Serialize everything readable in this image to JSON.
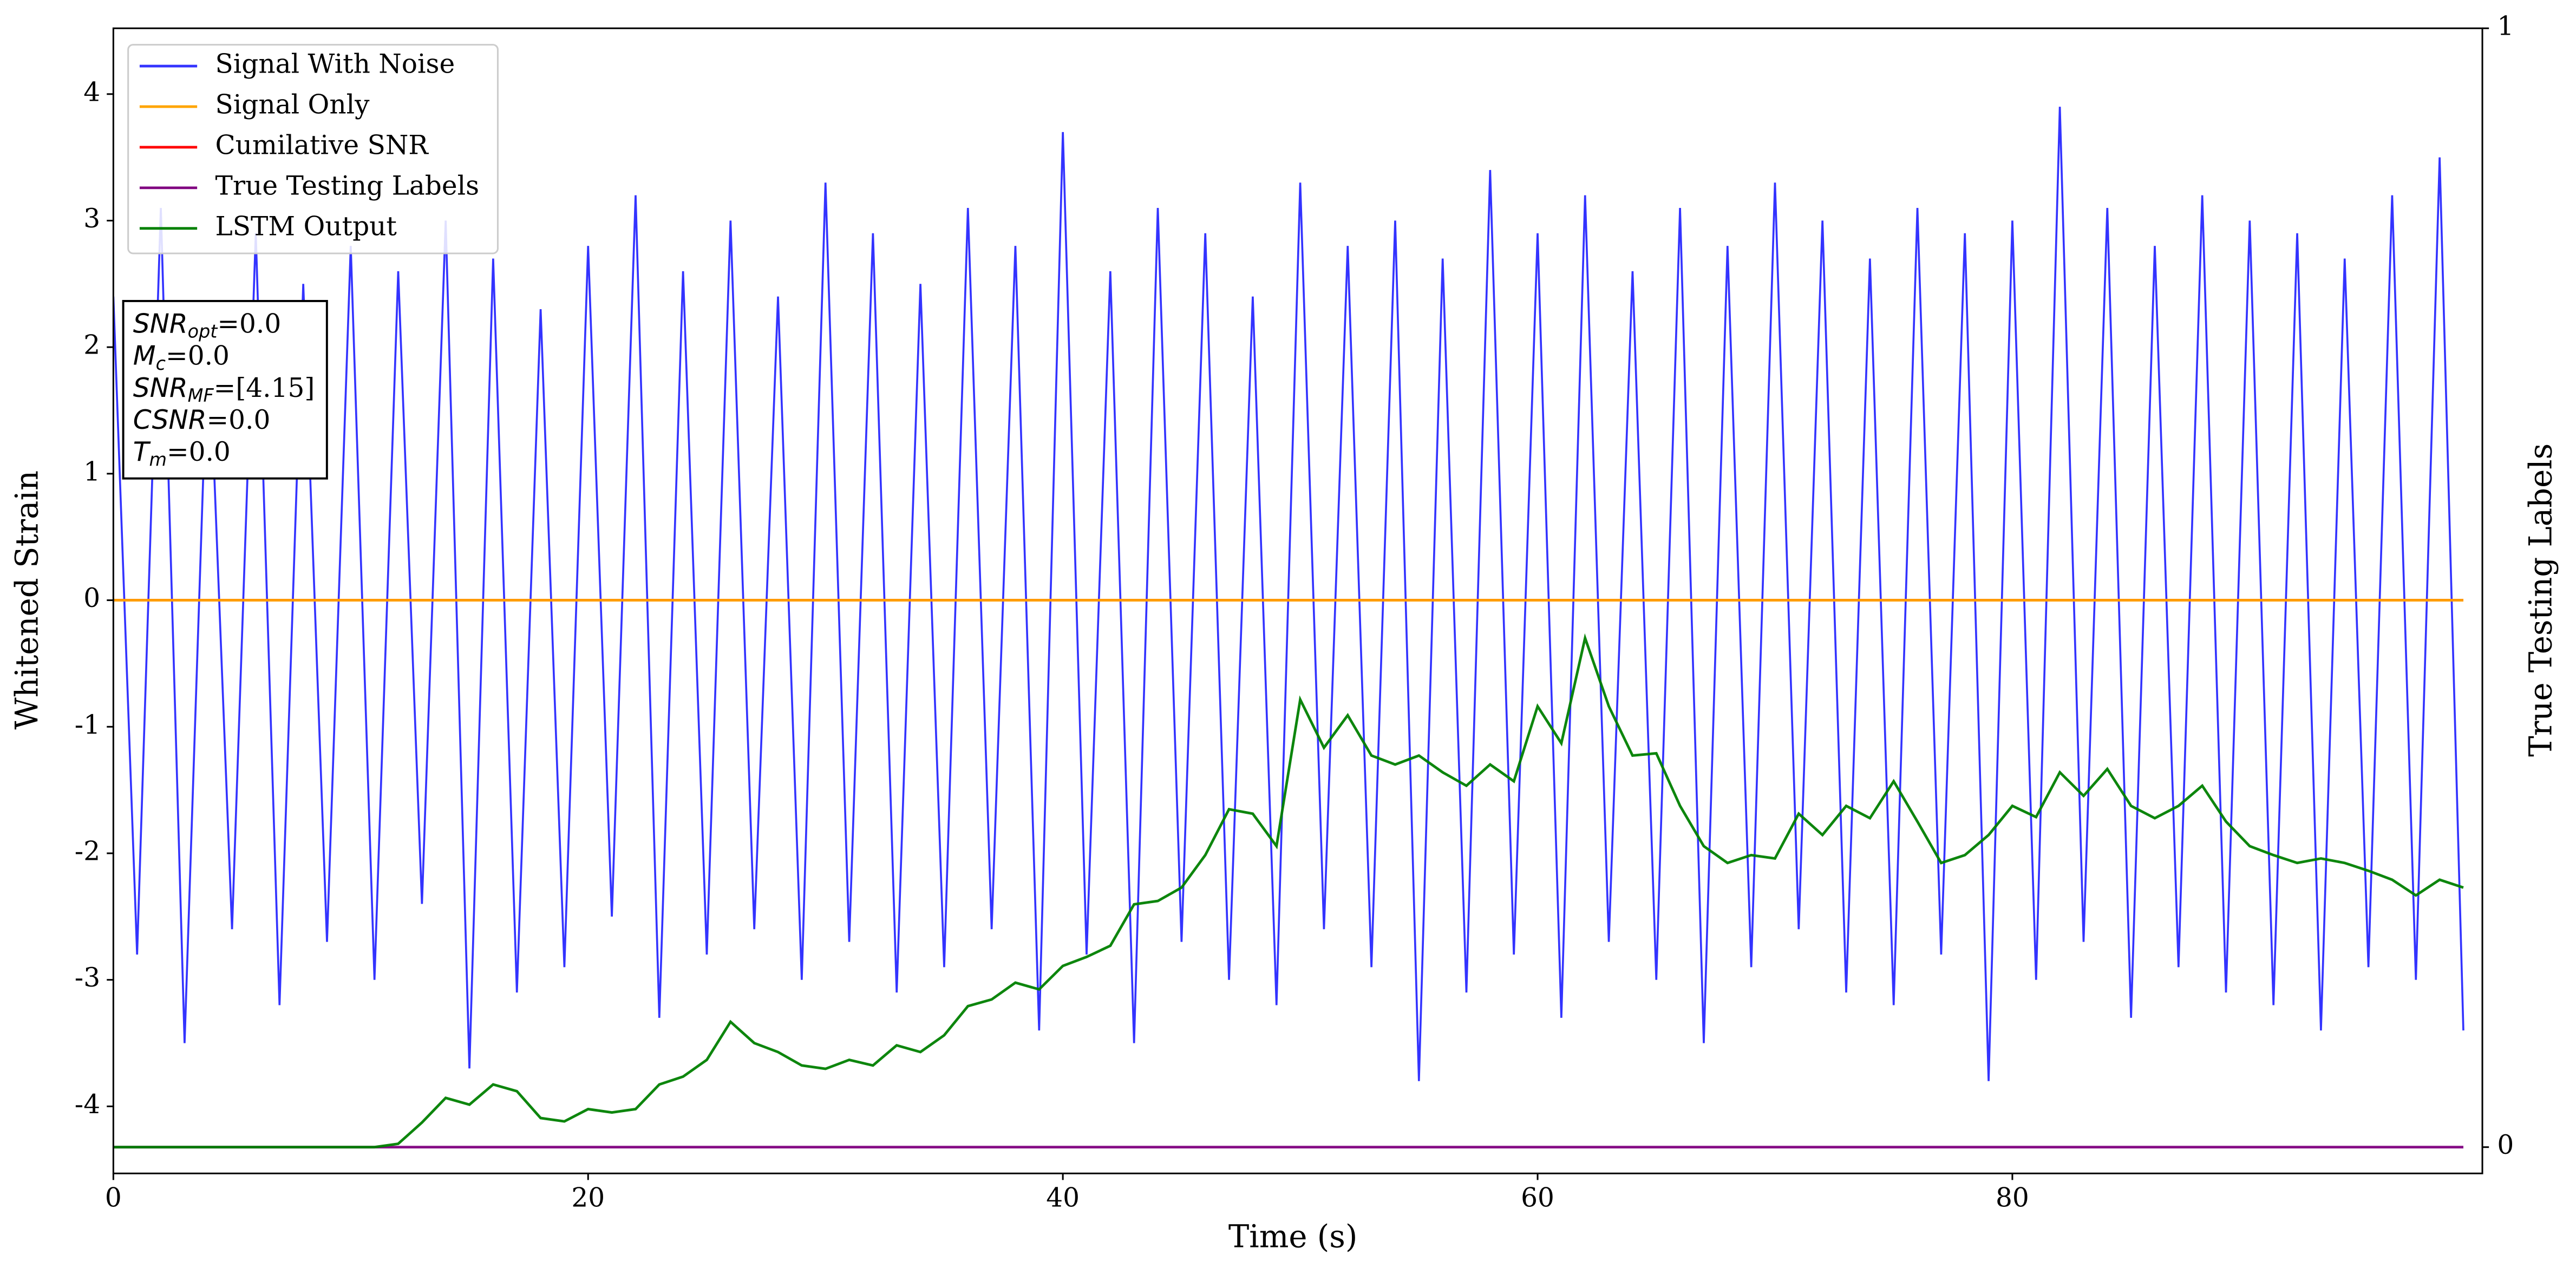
{
  "chart_data": {
    "type": "line",
    "xlabel": "Time (s)",
    "ylabel": "Whitened Strain",
    "y2label": "True Testing Labels",
    "xlim": [
      0,
      99.8
    ],
    "ylim": [
      -4.53,
      4.52
    ],
    "y2lim": [
      -0.0235,
      1.0
    ],
    "xticks": [
      0,
      20,
      40,
      60,
      80
    ],
    "yticks": [
      -4,
      -3,
      -2,
      -1,
      0,
      1,
      2,
      3,
      4
    ],
    "y2ticks": [
      0,
      1
    ],
    "legend": "upper left",
    "x": [
      0,
      1,
      2,
      3,
      4,
      5,
      6,
      7,
      8,
      9,
      10,
      11,
      12,
      13,
      14,
      15,
      16,
      17,
      18,
      19,
      20,
      21,
      22,
      23,
      24,
      25,
      26,
      27,
      28,
      29,
      30,
      31,
      32,
      33,
      34,
      35,
      36,
      37,
      38,
      39,
      40,
      41,
      42,
      43,
      44,
      45,
      46,
      47,
      48,
      49,
      50,
      51,
      52,
      53,
      54,
      55,
      56,
      57,
      58,
      59,
      60,
      61,
      62,
      63,
      64,
      65,
      66,
      67,
      68,
      69,
      70,
      71,
      72,
      73,
      74,
      75,
      76,
      77,
      78,
      79,
      80,
      81,
      82,
      83,
      84,
      85,
      86,
      87,
      88,
      89,
      90,
      91,
      92,
      93,
      94,
      95,
      96,
      97,
      98,
      99
    ],
    "series": [
      {
        "name": "Signal With Noise",
        "color": "#3333ff",
        "axis": "y",
        "values": [
          2.4,
          -2.8,
          3.1,
          -3.5,
          2.2,
          -2.6,
          2.9,
          -3.2,
          2.5,
          -2.7,
          2.8,
          -3.0,
          2.6,
          -2.4,
          3.0,
          -3.7,
          2.7,
          -3.1,
          2.3,
          -2.9,
          2.8,
          -2.5,
          3.2,
          -3.3,
          2.6,
          -2.8,
          3.0,
          -2.6,
          2.4,
          -3.0,
          3.3,
          -2.7,
          2.9,
          -3.1,
          2.5,
          -2.9,
          3.1,
          -2.6,
          2.8,
          -3.4,
          3.7,
          -2.8,
          2.6,
          -3.5,
          3.1,
          -2.7,
          2.9,
          -3.0,
          2.4,
          -3.2,
          3.3,
          -2.6,
          2.8,
          -2.9,
          3.0,
          -3.8,
          2.7,
          -3.1,
          3.4,
          -2.8,
          2.9,
          -3.3,
          3.2,
          -2.7,
          2.6,
          -3.0,
          3.1,
          -3.5,
          2.8,
          -2.9,
          3.3,
          -2.6,
          3.0,
          -3.1,
          2.7,
          -3.2,
          3.1,
          -2.8,
          2.9,
          -3.8,
          3.0,
          -3.0,
          3.9,
          -2.7,
          3.1,
          -3.3,
          2.8,
          -2.9,
          3.2,
          -3.1,
          3.0,
          -3.2,
          2.9,
          -3.4,
          2.7,
          -2.9,
          3.2,
          -3.0,
          3.5,
          -3.4
        ]
      },
      {
        "name": "Signal Only",
        "color": "#ffa500",
        "axis": "y",
        "values": [
          0,
          0,
          0,
          0,
          0,
          0,
          0,
          0,
          0,
          0,
          0,
          0,
          0,
          0,
          0,
          0,
          0,
          0,
          0,
          0,
          0,
          0,
          0,
          0,
          0,
          0,
          0,
          0,
          0,
          0,
          0,
          0,
          0,
          0,
          0,
          0,
          0,
          0,
          0,
          0,
          0,
          0,
          0,
          0,
          0,
          0,
          0,
          0,
          0,
          0,
          0,
          0,
          0,
          0,
          0,
          0,
          0,
          0,
          0,
          0,
          0,
          0,
          0,
          0,
          0,
          0,
          0,
          0,
          0,
          0,
          0,
          0,
          0,
          0,
          0,
          0,
          0,
          0,
          0,
          0,
          0,
          0,
          0,
          0,
          0,
          0,
          0,
          0,
          0,
          0,
          0,
          0,
          0,
          0,
          0,
          0,
          0,
          0,
          0,
          0
        ]
      },
      {
        "name": "Cumilative SNR",
        "color": "#ff0000",
        "axis": "y",
        "values": [
          0,
          0,
          0,
          0,
          0,
          0,
          0,
          0,
          0,
          0,
          0,
          0,
          0,
          0,
          0,
          0,
          0,
          0,
          0,
          0,
          0,
          0,
          0,
          0,
          0,
          0,
          0,
          0,
          0,
          0,
          0,
          0,
          0,
          0,
          0,
          0,
          0,
          0,
          0,
          0,
          0,
          0,
          0,
          0,
          0,
          0,
          0,
          0,
          0,
          0,
          0,
          0,
          0,
          0,
          0,
          0,
          0,
          0,
          0,
          0,
          0,
          0,
          0,
          0,
          0,
          0,
          0,
          0,
          0,
          0,
          0,
          0,
          0,
          0,
          0,
          0,
          0,
          0,
          0,
          0,
          0,
          0,
          0,
          0,
          0,
          0,
          0,
          0,
          0,
          0,
          0,
          0,
          0,
          0,
          0,
          0,
          0,
          0,
          0,
          0
        ]
      },
      {
        "name": "True Testing Labels",
        "color": "#800080",
        "axis": "y2",
        "values": [
          0,
          0,
          0,
          0,
          0,
          0,
          0,
          0,
          0,
          0,
          0,
          0,
          0,
          0,
          0,
          0,
          0,
          0,
          0,
          0,
          0,
          0,
          0,
          0,
          0,
          0,
          0,
          0,
          0,
          0,
          0,
          0,
          0,
          0,
          0,
          0,
          0,
          0,
          0,
          0,
          0,
          0,
          0,
          0,
          0,
          0,
          0,
          0,
          0,
          0,
          0,
          0,
          0,
          0,
          0,
          0,
          0,
          0,
          0,
          0,
          0,
          0,
          0,
          0,
          0,
          0,
          0,
          0,
          0,
          0,
          0,
          0,
          0,
          0,
          0,
          0,
          0,
          0,
          0,
          0,
          0,
          0,
          0,
          0,
          0,
          0,
          0,
          0,
          0,
          0,
          0,
          0,
          0,
          0,
          0,
          0,
          0,
          0,
          0,
          0
        ]
      },
      {
        "name": "LSTM Output",
        "color": "#008000",
        "axis": "y2",
        "values": [
          0,
          0,
          0,
          0,
          0,
          0,
          0,
          0,
          0,
          0,
          0,
          0,
          0.003,
          0.022,
          0.044,
          0.038,
          0.056,
          0.05,
          0.026,
          0.023,
          0.034,
          0.031,
          0.034,
          0.056,
          0.063,
          0.078,
          0.112,
          0.093,
          0.085,
          0.073,
          0.07,
          0.078,
          0.073,
          0.091,
          0.085,
          0.1,
          0.126,
          0.132,
          0.147,
          0.141,
          0.162,
          0.17,
          0.18,
          0.217,
          0.22,
          0.232,
          0.261,
          0.302,
          0.298,
          0.269,
          0.4,
          0.357,
          0.386,
          0.35,
          0.342,
          0.35,
          0.335,
          0.323,
          0.342,
          0.327,
          0.394,
          0.361,
          0.455,
          0.394,
          0.35,
          0.352,
          0.305,
          0.269,
          0.254,
          0.261,
          0.258,
          0.298,
          0.279,
          0.305,
          0.294,
          0.327,
          0.291,
          0.254,
          0.261,
          0.279,
          0.305,
          0.295,
          0.335,
          0.314,
          0.338,
          0.305,
          0.294,
          0.305,
          0.323,
          0.291,
          0.269,
          0.261,
          0.254,
          0.258,
          0.254,
          0.247,
          0.239,
          0.225,
          0.239,
          0.232
        ]
      }
    ],
    "annotations": [
      {
        "base": "SNR",
        "sub": "opt",
        "text": "=0.0"
      },
      {
        "base": "M",
        "sub": "c",
        "text": "=0.0"
      },
      {
        "base": "SNR",
        "sub": "MF",
        "text": "=[4.15]"
      },
      {
        "base": "CSNR",
        "text": "=0.0"
      },
      {
        "base": "T",
        "sub": "m",
        "text": "=0.0"
      }
    ]
  }
}
